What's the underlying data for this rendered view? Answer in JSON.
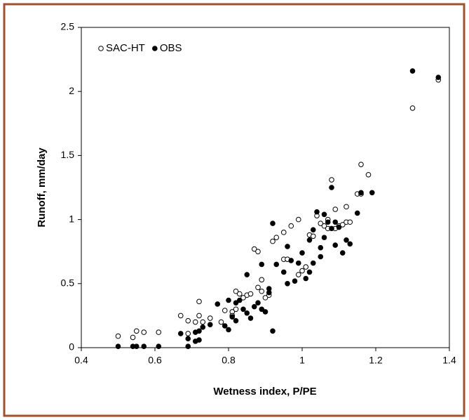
{
  "chart_data": {
    "type": "scatter",
    "x_label": "Wetness index, P/PE",
    "y_label": "Runoff, mm/day",
    "xlim": [
      0.4,
      1.4
    ],
    "xticks": [
      0.4,
      0.6,
      0.8,
      1,
      1.2,
      1.4
    ],
    "ylim": [
      0,
      2.5
    ],
    "yticks": [
      0,
      0.5,
      1,
      1.5,
      2,
      2.5
    ],
    "grid": false,
    "legend": "top-left",
    "series": [
      {
        "name": "SAC-HT",
        "color": "#000000",
        "filled": false,
        "x": [
          0.5,
          0.54,
          0.55,
          0.57,
          0.61,
          0.67,
          0.69,
          0.69,
          0.71,
          0.72,
          0.72,
          0.73,
          0.75,
          0.78,
          0.79,
          0.81,
          0.81,
          0.82,
          0.82,
          0.83,
          0.84,
          0.85,
          0.86,
          0.87,
          0.88,
          0.88,
          0.89,
          0.89,
          0.9,
          0.91,
          0.92,
          0.93,
          0.95,
          0.95,
          0.96,
          0.97,
          0.99,
          0.99,
          1.0,
          1.01,
          1.02,
          1.03,
          1.04,
          1.05,
          1.06,
          1.07,
          1.07,
          1.08,
          1.09,
          1.09,
          1.1,
          1.11,
          1.12,
          1.12,
          1.13,
          1.15,
          1.16,
          1.16,
          1.18,
          1.3,
          1.37
        ],
        "values": [
          0.09,
          0.08,
          0.13,
          0.12,
          0.12,
          0.25,
          0.11,
          0.21,
          0.2,
          0.25,
          0.36,
          0.2,
          0.23,
          0.2,
          0.29,
          0.28,
          0.25,
          0.3,
          0.44,
          0.42,
          0.39,
          0.41,
          0.42,
          0.77,
          0.75,
          0.47,
          0.53,
          0.44,
          0.39,
          0.41,
          0.83,
          0.86,
          0.9,
          0.69,
          0.69,
          0.95,
          1.0,
          0.57,
          0.6,
          0.63,
          0.88,
          0.87,
          1.03,
          0.97,
          0.95,
          0.93,
          1.0,
          1.31,
          0.93,
          1.08,
          0.95,
          0.96,
          1.1,
          0.98,
          0.98,
          1.2,
          1.43,
          1.2,
          1.35,
          1.87,
          2.09
        ]
      },
      {
        "name": "OBS",
        "color": "#000000",
        "filled": true,
        "x": [
          0.5,
          0.54,
          0.55,
          0.57,
          0.61,
          0.67,
          0.69,
          0.69,
          0.71,
          0.71,
          0.72,
          0.72,
          0.73,
          0.75,
          0.77,
          0.79,
          0.8,
          0.8,
          0.81,
          0.82,
          0.82,
          0.83,
          0.84,
          0.85,
          0.85,
          0.86,
          0.87,
          0.88,
          0.89,
          0.89,
          0.9,
          0.91,
          0.91,
          0.92,
          0.92,
          0.93,
          0.95,
          0.96,
          0.96,
          0.97,
          0.98,
          0.99,
          1.0,
          1.01,
          1.02,
          1.02,
          1.03,
          1.03,
          1.04,
          1.05,
          1.05,
          1.06,
          1.06,
          1.07,
          1.08,
          1.08,
          1.09,
          1.09,
          1.1,
          1.11,
          1.12,
          1.13,
          1.15,
          1.16,
          1.19,
          1.3,
          1.37
        ],
        "values": [
          0.01,
          0.01,
          0.01,
          0.01,
          0.01,
          0.11,
          0.01,
          0.07,
          0.05,
          0.12,
          0.06,
          0.13,
          0.16,
          0.18,
          0.34,
          0.17,
          0.14,
          0.37,
          0.24,
          0.35,
          0.21,
          0.37,
          0.3,
          0.57,
          0.27,
          0.23,
          0.32,
          0.35,
          0.65,
          0.3,
          0.28,
          0.46,
          0.43,
          0.97,
          0.13,
          0.65,
          0.59,
          0.5,
          0.79,
          0.68,
          0.52,
          0.66,
          0.74,
          0.54,
          0.84,
          0.59,
          0.92,
          0.66,
          1.06,
          0.78,
          0.71,
          1.04,
          0.86,
          0.98,
          1.25,
          0.93,
          0.98,
          0.8,
          0.94,
          0.74,
          0.84,
          0.81,
          1.05,
          1.21,
          1.21,
          2.16,
          2.11
        ]
      }
    ]
  }
}
